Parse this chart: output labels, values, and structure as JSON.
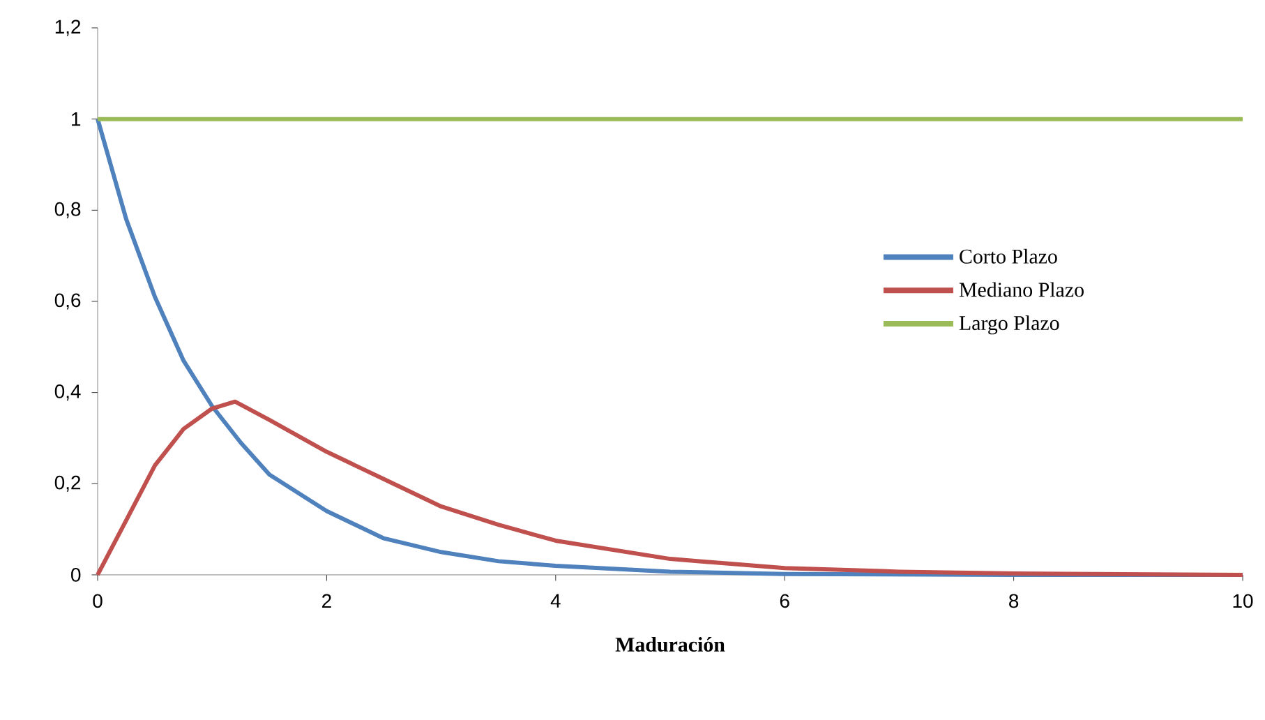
{
  "chart_data": {
    "type": "line",
    "xlabel": "Maduración",
    "xlim": [
      0,
      10
    ],
    "ylim": [
      0,
      1.2
    ],
    "xticks": [
      0,
      2,
      4,
      6,
      8,
      10
    ],
    "yticks": [
      0,
      {
        "value": 0.2,
        "label": "0,2"
      },
      {
        "value": 0.4,
        "label": "0,4"
      },
      {
        "value": 0.6,
        "label": "0,6"
      },
      {
        "value": 0.8,
        "label": "0,8"
      },
      1,
      {
        "value": 1.2,
        "label": "1,2"
      }
    ],
    "grid": false,
    "legend": "right",
    "marker": "none",
    "line_style": "solid",
    "series": [
      {
        "name": "Corto Plazo",
        "color": "#4f81bd",
        "x": [
          0,
          0.25,
          0.5,
          0.75,
          1,
          1.25,
          1.5,
          2,
          2.5,
          3,
          3.5,
          4,
          5,
          6,
          8,
          10
        ],
        "values": [
          1,
          0.78,
          0.61,
          0.47,
          0.37,
          0.29,
          0.22,
          0.14,
          0.08,
          0.05,
          0.03,
          0.02,
          0.007,
          0.002,
          0,
          0
        ]
      },
      {
        "name": "Mediano Plazo",
        "color": "#c0504d",
        "x": [
          0,
          0.25,
          0.5,
          0.75,
          1,
          1.2,
          1.5,
          2,
          2.5,
          3,
          3.5,
          4,
          5,
          6,
          7,
          8,
          10
        ],
        "values": [
          0,
          0.12,
          0.24,
          0.32,
          0.365,
          0.38,
          0.34,
          0.27,
          0.21,
          0.15,
          0.11,
          0.075,
          0.035,
          0.015,
          0.007,
          0.003,
          0
        ]
      },
      {
        "name": "Largo Plazo",
        "color": "#9bbb59",
        "x": [
          0,
          10
        ],
        "values": [
          1,
          1
        ]
      }
    ]
  }
}
